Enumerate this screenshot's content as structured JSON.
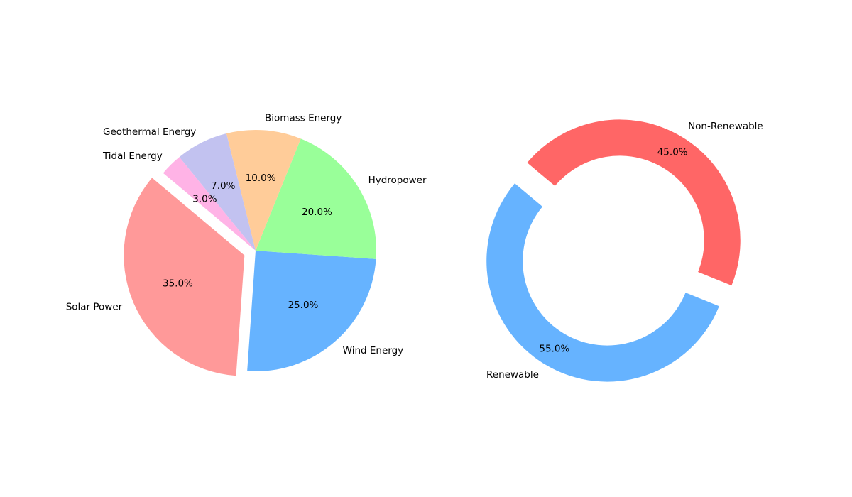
{
  "chart_data": [
    {
      "type": "pie",
      "title": "",
      "slices": [
        {
          "label": "Solar Power",
          "value": 35.0,
          "pct_label": "35.0%",
          "color": "#ff9999",
          "exploded": true
        },
        {
          "label": "Wind Energy",
          "value": 25.0,
          "pct_label": "25.0%",
          "color": "#66b3ff",
          "exploded": false
        },
        {
          "label": "Hydropower",
          "value": 20.0,
          "pct_label": "20.0%",
          "color": "#99ff99",
          "exploded": false
        },
        {
          "label": "Biomass Energy",
          "value": 10.0,
          "pct_label": "10.0%",
          "color": "#ffcc99",
          "exploded": false
        },
        {
          "label": "Geothermal Energy",
          "value": 7.0,
          "pct_label": "7.0%",
          "color": "#c2c2f0",
          "exploded": false
        },
        {
          "label": "Tidal Energy",
          "value": 3.0,
          "pct_label": "3.0%",
          "color": "#ffb3e6",
          "exploded": false
        }
      ]
    },
    {
      "type": "pie",
      "variant": "donut",
      "title": "",
      "slices": [
        {
          "label": "Renewable",
          "value": 55.0,
          "pct_label": "55.0%",
          "color": "#66b3ff",
          "exploded": true
        },
        {
          "label": "Non-Renewable",
          "value": 45.0,
          "pct_label": "45.0%",
          "color": "#ff6666",
          "exploded": true
        }
      ]
    }
  ]
}
